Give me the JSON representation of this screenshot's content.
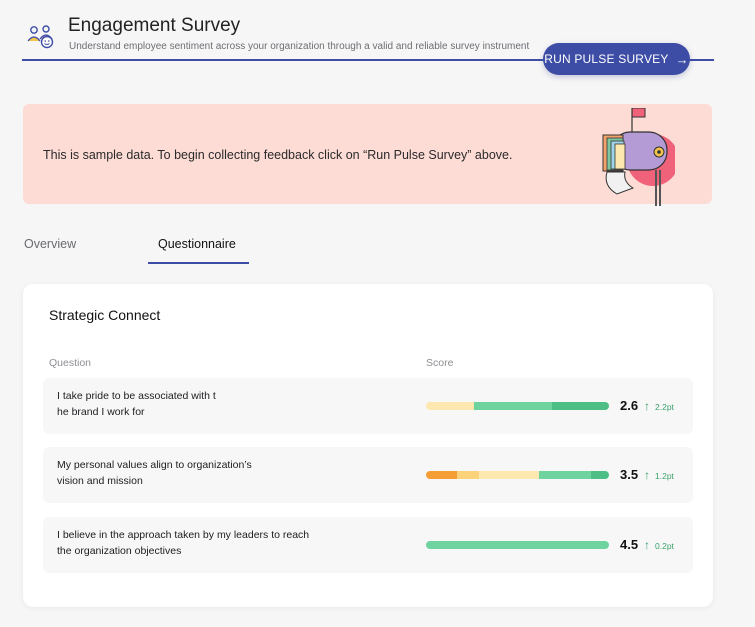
{
  "header": {
    "title": "Engagement Survey",
    "subtitle": "Understand employee sentiment across your organization through a valid and reliable survey instrument",
    "run_button": "RUN PULSE SURVEY",
    "icon": "people-group-icon"
  },
  "banner": {
    "text": "This is sample data. To begin collecting feedback click on “Run Pulse Survey” above.",
    "illustration": "mailbox-illustration"
  },
  "tabs": [
    {
      "label": "Overview",
      "active": false
    },
    {
      "label": "Questionnaire",
      "active": true
    }
  ],
  "section": {
    "title": "Strategic Connect",
    "columns": {
      "question": "Question",
      "score": "Score"
    },
    "rows": [
      {
        "question_lines": [
          "I take pride to be associated with t",
          "he brand I work for"
        ],
        "score": "2.6",
        "trend": "2.2pt",
        "distribution": [
          {
            "pct": 26,
            "color": "#fde9b0"
          },
          {
            "pct": 43,
            "color": "#6fd3a0"
          },
          {
            "pct": 31,
            "color": "#4dbe85"
          }
        ]
      },
      {
        "question_lines": [
          "My personal values align to organization’s",
          "vision and mission"
        ],
        "score": "3.5",
        "trend": "1.2pt",
        "distribution": [
          {
            "pct": 17,
            "color": "#f59e36"
          },
          {
            "pct": 12,
            "color": "#fcd27a"
          },
          {
            "pct": 33,
            "color": "#fde9b0"
          },
          {
            "pct": 28,
            "color": "#6fd3a0"
          },
          {
            "pct": 10,
            "color": "#4dbe85"
          }
        ]
      },
      {
        "question_lines": [
          "I believe in the approach taken by my leaders to reach",
          "the organization objectives"
        ],
        "score": "4.5",
        "trend": "0.2pt",
        "distribution": [
          {
            "pct": 100,
            "color": "#6fd3a0"
          }
        ]
      }
    ]
  },
  "colors": {
    "accent": "#3d4da6",
    "banner_bg": "#fedcd6",
    "trend_up": "#3aa36b"
  }
}
